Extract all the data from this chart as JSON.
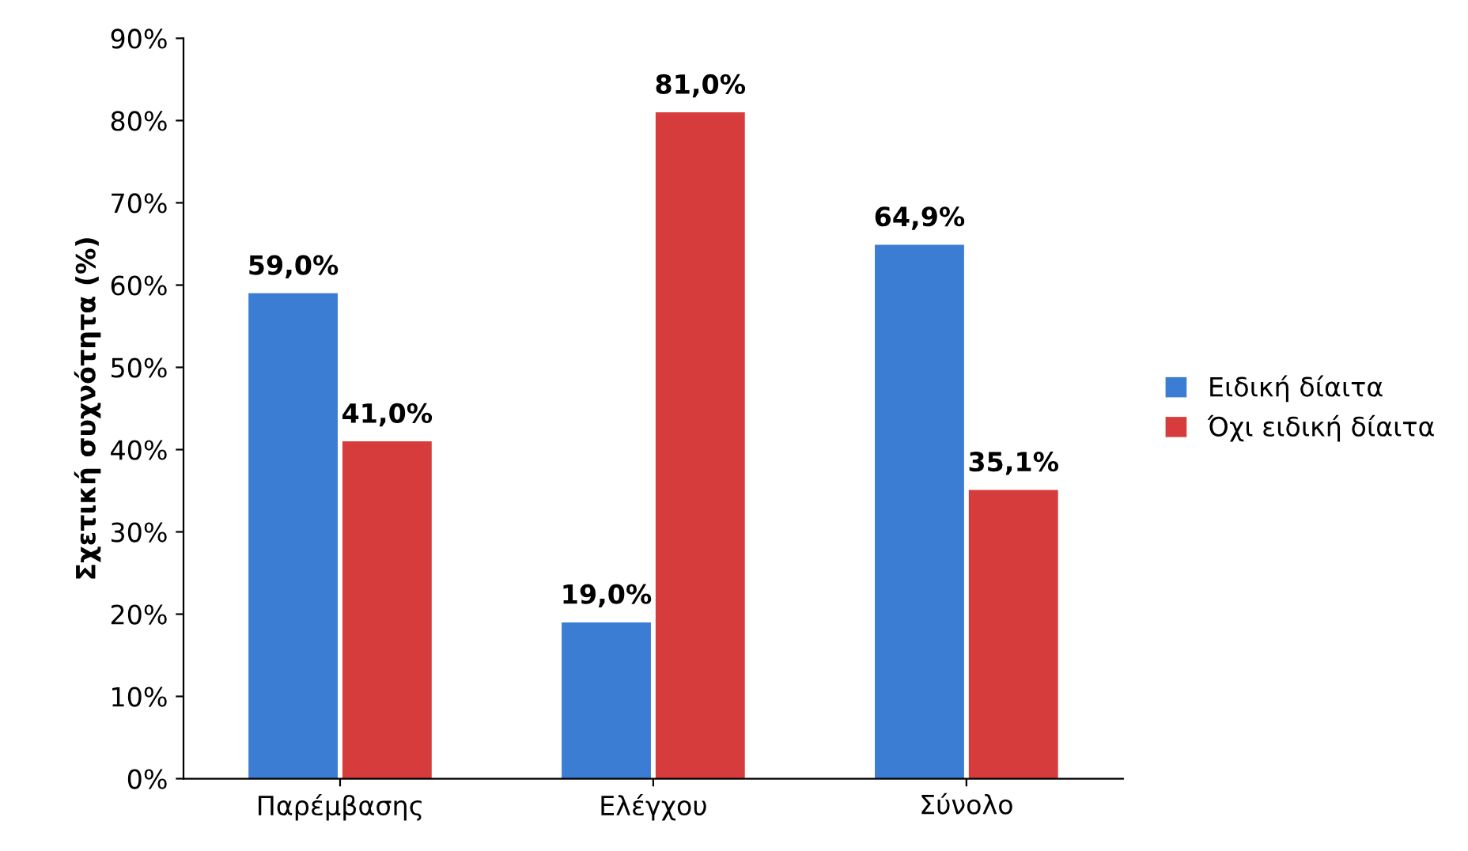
{
  "chart_data": {
    "type": "bar",
    "ylabel": "Σχετική συχνότητα (%)",
    "categories": [
      "Παρέμβασης",
      "Ελέγχου",
      "Σύνολο"
    ],
    "series": [
      {
        "name": "Ειδική δίαιτα",
        "color": "#3c7dd4",
        "values": [
          59.0,
          19.0,
          64.9
        ],
        "value_labels": [
          "59,0%",
          "19,0%",
          "64,9%"
        ]
      },
      {
        "name": "Όχι ειδική δίαιτα",
        "color": "#d63c3c",
        "values": [
          41.0,
          81.0,
          35.1
        ],
        "value_labels": [
          "41,0%",
          "81,0%",
          "35,1%"
        ]
      }
    ],
    "ylim": [
      0,
      90
    ],
    "yticks": [
      {
        "value": 0,
        "label": "0%"
      },
      {
        "value": 10,
        "label": "10%"
      },
      {
        "value": 20,
        "label": "20%"
      },
      {
        "value": 30,
        "label": "30%"
      },
      {
        "value": 40,
        "label": "40%"
      },
      {
        "value": 50,
        "label": "50%"
      },
      {
        "value": 60,
        "label": "60%"
      },
      {
        "value": 70,
        "label": "70%"
      },
      {
        "value": 80,
        "label": "80%"
      },
      {
        "value": 90,
        "label": "90%"
      }
    ],
    "legend": "right",
    "grid": false
  }
}
